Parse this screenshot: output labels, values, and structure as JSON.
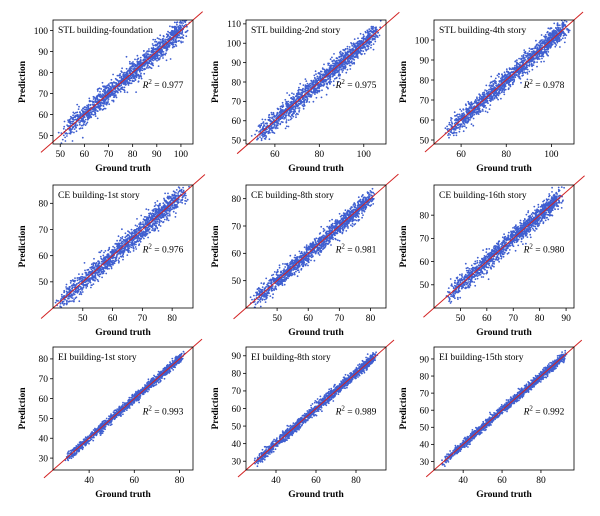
{
  "figure": {
    "colors": {
      "points": "#3f5fd0",
      "identity_line": "#d22222",
      "frame": "#000000",
      "background": "#ffffff"
    }
  },
  "chart_data": [
    {
      "type": "scatter",
      "title": "STL building-foundation",
      "xlabel": "Ground truth",
      "ylabel": "Prediction",
      "xlim": [
        47,
        105
      ],
      "ylim": [
        46,
        105
      ],
      "xticks": [
        50,
        60,
        70,
        80,
        90,
        100
      ],
      "yticks": [
        50,
        60,
        70,
        80,
        90,
        100
      ],
      "r2_label": "= 0.977",
      "r2": 0.977,
      "identity_line": true,
      "grid": false,
      "points_summary": {
        "x_range": [
          52,
          101
        ],
        "spread": 3.2
      }
    },
    {
      "type": "scatter",
      "title": "STL building-2nd story",
      "xlabel": "Ground truth",
      "ylabel": "Prediction",
      "xlim": [
        47,
        110
      ],
      "ylim": [
        48,
        112
      ],
      "xticks": [
        60,
        80,
        100
      ],
      "yticks": [
        50,
        60,
        70,
        80,
        90,
        100,
        110
      ],
      "r2_label": "= 0.975",
      "r2": 0.975,
      "identity_line": true,
      "grid": false,
      "points_summary": {
        "x_range": [
          52,
          105
        ],
        "spread": 3.4
      }
    },
    {
      "type": "scatter",
      "title": "STL building-4th story",
      "xlabel": "Ground truth",
      "ylabel": "Prediction",
      "xlim": [
        48,
        110
      ],
      "ylim": [
        48,
        110
      ],
      "xticks": [
        60,
        80,
        100
      ],
      "yticks": [
        50,
        60,
        70,
        80,
        90,
        100
      ],
      "r2_label": "= 0.978",
      "r2": 0.978,
      "identity_line": true,
      "grid": false,
      "points_summary": {
        "x_range": [
          55,
          106
        ],
        "spread": 3.2
      }
    },
    {
      "type": "scatter",
      "title": "CE building-1st story",
      "xlabel": "Ground truth",
      "ylabel": "Prediction",
      "xlim": [
        40,
        87
      ],
      "ylim": [
        40,
        87
      ],
      "xticks": [
        50,
        60,
        70,
        80
      ],
      "yticks": [
        50,
        60,
        70,
        80
      ],
      "r2_label": "= 0.976",
      "r2": 0.976,
      "identity_line": true,
      "grid": false,
      "points_summary": {
        "x_range": [
          43,
          83
        ],
        "spread": 2.6
      }
    },
    {
      "type": "scatter",
      "title": "CE building-8th story",
      "xlabel": "Ground truth",
      "ylabel": "Prediction",
      "xlim": [
        40,
        85
      ],
      "ylim": [
        40,
        85
      ],
      "xticks": [
        50,
        60,
        70,
        80
      ],
      "yticks": [
        50,
        60,
        70,
        80
      ],
      "r2_label": "= 0.981",
      "r2": 0.981,
      "identity_line": true,
      "grid": false,
      "points_summary": {
        "x_range": [
          43,
          80
        ],
        "spread": 2.2
      }
    },
    {
      "type": "scatter",
      "title": "CE building-16th story",
      "xlabel": "Ground truth",
      "ylabel": "Prediction",
      "xlim": [
        40,
        93
      ],
      "ylim": [
        40,
        93
      ],
      "xticks": [
        50,
        60,
        70,
        80,
        90
      ],
      "yticks": [
        50,
        60,
        70,
        80
      ],
      "r2_label": "= 0.980",
      "r2": 0.98,
      "identity_line": true,
      "grid": false,
      "points_summary": {
        "x_range": [
          46,
          87
        ],
        "spread": 2.6
      }
    },
    {
      "type": "scatter",
      "title": "EI building-1st story",
      "xlabel": "Ground truth",
      "ylabel": "Prediction",
      "xlim": [
        24,
        86
      ],
      "ylim": [
        24,
        86
      ],
      "xticks": [
        40,
        60,
        80
      ],
      "yticks": [
        30,
        40,
        50,
        60,
        70,
        80
      ],
      "r2_label": "= 0.993",
      "r2": 0.993,
      "identity_line": true,
      "grid": false,
      "points_summary": {
        "x_range": [
          30,
          81
        ],
        "spread": 1.4
      }
    },
    {
      "type": "scatter",
      "title": "EI building-8th story",
      "xlabel": "Ground truth",
      "ylabel": "Prediction",
      "xlim": [
        25,
        95
      ],
      "ylim": [
        25,
        95
      ],
      "xticks": [
        40,
        60,
        80
      ],
      "yticks": [
        30,
        40,
        50,
        60,
        70,
        80,
        90
      ],
      "r2_label": "= 0.989",
      "r2": 0.989,
      "identity_line": true,
      "grid": false,
      "points_summary": {
        "x_range": [
          30,
          89
        ],
        "spread": 1.9
      }
    },
    {
      "type": "scatter",
      "title": "EI building-15th story",
      "xlabel": "Ground truth",
      "ylabel": "Prediction",
      "xlim": [
        25,
        97
      ],
      "ylim": [
        25,
        97
      ],
      "xticks": [
        40,
        60,
        80
      ],
      "yticks": [
        30,
        40,
        50,
        60,
        70,
        80,
        90
      ],
      "r2_label": "= 0.992",
      "r2": 0.992,
      "identity_line": true,
      "grid": false,
      "points_summary": {
        "x_range": [
          30,
          92
        ],
        "spread": 1.6
      }
    }
  ]
}
